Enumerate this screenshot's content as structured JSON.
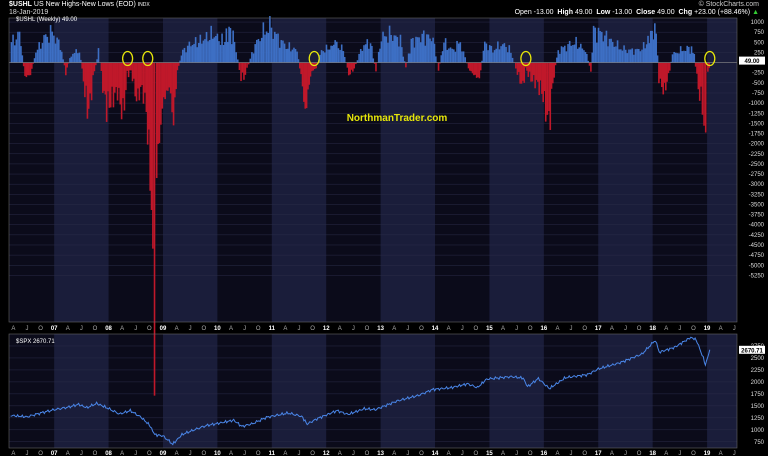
{
  "header": {
    "symbol": "$USHL",
    "description": "US New Highs-New Lows (EOD)",
    "index_tag": "INDX",
    "date": "18-Jan-2019",
    "watermark": "© StockCharts.com",
    "open_label": "Open",
    "open": "-13.00",
    "high_label": "High",
    "high": "49.00",
    "low_label": "Low",
    "low": "-13.00",
    "close_label": "Close",
    "close": "49.00",
    "chg_label": "Chg",
    "chg": "+23.00 (+88.46%)",
    "chg_arrow": "▲"
  },
  "chart_data": [
    {
      "type": "area",
      "legend": "$USHL (Weekly) 49.00",
      "annotation": "NorthmanTrader.com",
      "last_value_label": "49.00",
      "ylim": [
        -6400,
        1100
      ],
      "y_ticks": [
        1000,
        750,
        500,
        250,
        0,
        -250,
        -500,
        -750,
        -1000,
        -1250,
        -1500,
        -1750,
        -2000,
        -2250,
        -2500,
        -2750,
        -3000,
        -3250,
        -3500,
        -3750,
        -4000,
        -4250,
        -4500,
        -4750,
        -5000,
        -5250
      ],
      "x_labels": [
        "A",
        "J",
        "O",
        "07",
        "A",
        "J",
        "O",
        "08",
        "A",
        "J",
        "O",
        "09",
        "A",
        "J",
        "O",
        "10",
        "A",
        "J",
        "O",
        "11",
        "A",
        "J",
        "O",
        "12",
        "A",
        "J",
        "O",
        "13",
        "A",
        "J",
        "O",
        "14",
        "A",
        "J",
        "O",
        "15",
        "A",
        "J",
        "O",
        "16",
        "A",
        "J",
        "O",
        "17",
        "A",
        "J",
        "O",
        "18",
        "A",
        "J",
        "O",
        "19",
        "A",
        "J"
      ],
      "xlim": [
        2006.17,
        2019.55
      ],
      "positive_color": "#3d6fc4",
      "negative_color": "#c0182a",
      "circle_color": "#e6e60a",
      "highlight_circles": [
        2008.35,
        2008.72,
        2011.78,
        2015.67,
        2019.05
      ],
      "series_points": [
        [
          2006.2,
          500
        ],
        [
          2006.35,
          700
        ],
        [
          2006.45,
          -350
        ],
        [
          2006.55,
          -300
        ],
        [
          2006.65,
          250
        ],
        [
          2006.8,
          600
        ],
        [
          2006.95,
          750
        ],
        [
          2007.1,
          400
        ],
        [
          2007.2,
          -250
        ],
        [
          2007.3,
          200
        ],
        [
          2007.45,
          300
        ],
        [
          2007.55,
          -700
        ],
        [
          2007.62,
          -1250
        ],
        [
          2007.7,
          -400
        ],
        [
          2007.8,
          300
        ],
        [
          2007.88,
          -600
        ],
        [
          2007.95,
          -1100
        ],
        [
          2008.05,
          -900
        ],
        [
          2008.15,
          -700
        ],
        [
          2008.25,
          -1300
        ],
        [
          2008.33,
          -300
        ],
        [
          2008.4,
          -200
        ],
        [
          2008.5,
          -900
        ],
        [
          2008.6,
          -600
        ],
        [
          2008.68,
          -1200
        ],
        [
          2008.75,
          -2700
        ],
        [
          2008.8,
          -5000
        ],
        [
          2008.83,
          -6250
        ],
        [
          2008.87,
          -2700
        ],
        [
          2008.92,
          -1800
        ],
        [
          2009.0,
          -900
        ],
        [
          2009.1,
          -600
        ],
        [
          2009.18,
          -1400
        ],
        [
          2009.25,
          -200
        ],
        [
          2009.35,
          300
        ],
        [
          2009.5,
          450
        ],
        [
          2009.7,
          550
        ],
        [
          2009.9,
          700
        ],
        [
          2010.1,
          500
        ],
        [
          2010.2,
          800
        ],
        [
          2010.3,
          550
        ],
        [
          2010.42,
          -400
        ],
        [
          2010.5,
          -300
        ],
        [
          2010.65,
          350
        ],
        [
          2010.8,
          700
        ],
        [
          2010.95,
          900
        ],
        [
          2011.1,
          600
        ],
        [
          2011.25,
          400
        ],
        [
          2011.45,
          300
        ],
        [
          2011.55,
          -550
        ],
        [
          2011.6,
          -1300
        ],
        [
          2011.65,
          -700
        ],
        [
          2011.72,
          -200
        ],
        [
          2011.8,
          -150
        ],
        [
          2011.9,
          300
        ],
        [
          2012.05,
          350
        ],
        [
          2012.15,
          500
        ],
        [
          2012.3,
          300
        ],
        [
          2012.4,
          -300
        ],
        [
          2012.5,
          -150
        ],
        [
          2012.65,
          400
        ],
        [
          2012.8,
          500
        ],
        [
          2012.9,
          -200
        ],
        [
          2013.0,
          600
        ],
        [
          2013.15,
          700
        ],
        [
          2013.35,
          550
        ],
        [
          2013.45,
          -150
        ],
        [
          2013.55,
          500
        ],
        [
          2013.75,
          650
        ],
        [
          2013.95,
          600
        ],
        [
          2014.05,
          -200
        ],
        [
          2014.15,
          500
        ],
        [
          2014.3,
          300
        ],
        [
          2014.45,
          500
        ],
        [
          2014.6,
          -150
        ],
        [
          2014.7,
          -300
        ],
        [
          2014.8,
          -400
        ],
        [
          2014.9,
          500
        ],
        [
          2015.05,
          300
        ],
        [
          2015.2,
          450
        ],
        [
          2015.35,
          350
        ],
        [
          2015.5,
          -250
        ],
        [
          2015.6,
          -600
        ],
        [
          2015.65,
          -150
        ],
        [
          2015.75,
          -400
        ],
        [
          2015.85,
          -500
        ],
        [
          2015.95,
          -700
        ],
        [
          2016.02,
          -1150
        ],
        [
          2016.08,
          -1600
        ],
        [
          2016.15,
          -500
        ],
        [
          2016.25,
          300
        ],
        [
          2016.4,
          400
        ],
        [
          2016.55,
          500
        ],
        [
          2016.75,
          300
        ],
        [
          2016.85,
          -200
        ],
        [
          2016.9,
          800
        ],
        [
          2017.05,
          700
        ],
        [
          2017.25,
          500
        ],
        [
          2017.4,
          350
        ],
        [
          2017.55,
          300
        ],
        [
          2017.7,
          300
        ],
        [
          2017.85,
          400
        ],
        [
          2017.95,
          700
        ],
        [
          2018.05,
          800
        ],
        [
          2018.1,
          -400
        ],
        [
          2018.18,
          -700
        ],
        [
          2018.25,
          -500
        ],
        [
          2018.35,
          200
        ],
        [
          2018.5,
          300
        ],
        [
          2018.65,
          350
        ],
        [
          2018.75,
          250
        ],
        [
          2018.8,
          -400
        ],
        [
          2018.85,
          -800
        ],
        [
          2018.9,
          -1000
        ],
        [
          2018.93,
          -1500
        ],
        [
          2018.96,
          -2200
        ],
        [
          2019.0,
          -300
        ],
        [
          2019.05,
          49
        ]
      ]
    },
    {
      "type": "line",
      "legend": "$SPX 2670.71",
      "last_value_label": "2670.71",
      "ylim": [
        620,
        3000
      ],
      "y_ticks": [
        2750,
        2500,
        2250,
        2000,
        1750,
        1500,
        1250,
        1000,
        750
      ],
      "x_labels": [
        "A",
        "J",
        "O",
        "07",
        "A",
        "J",
        "O",
        "08",
        "A",
        "J",
        "O",
        "09",
        "A",
        "J",
        "O",
        "10",
        "A",
        "J",
        "O",
        "11",
        "A",
        "J",
        "O",
        "12",
        "A",
        "J",
        "O",
        "13",
        "A",
        "J",
        "O",
        "14",
        "A",
        "J",
        "O",
        "15",
        "A",
        "J",
        "O",
        "16",
        "A",
        "J",
        "O",
        "17",
        "A",
        "J",
        "O",
        "18",
        "A",
        "J",
        "O",
        "19",
        "A",
        "J"
      ],
      "xlim": [
        2006.17,
        2019.55
      ],
      "line_color": "#4a86e8",
      "points": [
        [
          2006.2,
          1300
        ],
        [
          2006.5,
          1270
        ],
        [
          2006.75,
          1350
        ],
        [
          2007.0,
          1420
        ],
        [
          2007.25,
          1470
        ],
        [
          2007.45,
          1530
        ],
        [
          2007.6,
          1460
        ],
        [
          2007.78,
          1550
        ],
        [
          2007.95,
          1470
        ],
        [
          2008.2,
          1330
        ],
        [
          2008.4,
          1400
        ],
        [
          2008.6,
          1260
        ],
        [
          2008.75,
          1100
        ],
        [
          2008.85,
          900
        ],
        [
          2009.0,
          870
        ],
        [
          2009.18,
          700
        ],
        [
          2009.35,
          900
        ],
        [
          2009.55,
          990
        ],
        [
          2009.8,
          1090
        ],
        [
          2010.0,
          1130
        ],
        [
          2010.3,
          1200
        ],
        [
          2010.45,
          1070
        ],
        [
          2010.65,
          1130
        ],
        [
          2010.9,
          1260
        ],
        [
          2011.3,
          1350
        ],
        [
          2011.55,
          1280
        ],
        [
          2011.65,
          1120
        ],
        [
          2011.85,
          1240
        ],
        [
          2012.2,
          1400
        ],
        [
          2012.4,
          1320
        ],
        [
          2012.7,
          1440
        ],
        [
          2012.9,
          1420
        ],
        [
          2013.3,
          1600
        ],
        [
          2013.7,
          1720
        ],
        [
          2013.95,
          1840
        ],
        [
          2014.3,
          1880
        ],
        [
          2014.6,
          1960
        ],
        [
          2014.78,
          1880
        ],
        [
          2014.95,
          2060
        ],
        [
          2015.4,
          2110
        ],
        [
          2015.62,
          2080
        ],
        [
          2015.7,
          1900
        ],
        [
          2015.9,
          2070
        ],
        [
          2016.1,
          1860
        ],
        [
          2016.4,
          2090
        ],
        [
          2016.8,
          2150
        ],
        [
          2017.0,
          2270
        ],
        [
          2017.4,
          2400
        ],
        [
          2017.8,
          2580
        ],
        [
          2018.05,
          2870
        ],
        [
          2018.12,
          2620
        ],
        [
          2018.4,
          2720
        ],
        [
          2018.7,
          2930
        ],
        [
          2018.8,
          2880
        ],
        [
          2018.93,
          2500
        ],
        [
          2018.97,
          2350
        ],
        [
          2019.05,
          2670
        ]
      ]
    }
  ]
}
